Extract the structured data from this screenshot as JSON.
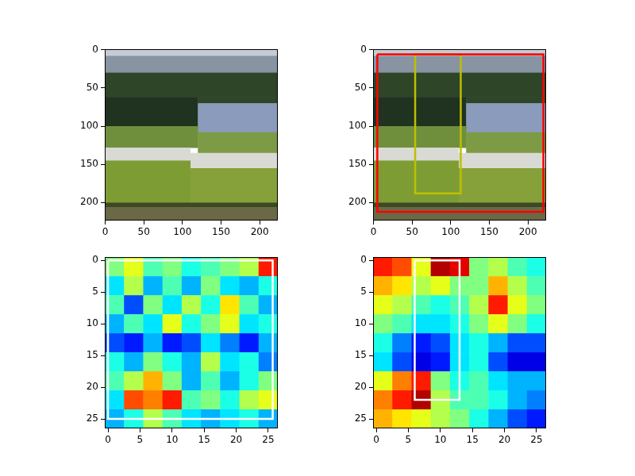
{
  "chart_data": [
    {
      "type": "image",
      "xlim": [
        -0.5,
        223.5
      ],
      "ylim": [
        223.5,
        -0.5
      ],
      "xticks": [
        0,
        50,
        100,
        150,
        200
      ],
      "yticks": [
        0,
        50,
        100,
        150,
        200
      ],
      "grid": false,
      "regions": [
        {
          "x0": -0.5,
          "x1": 223.5,
          "y0": -0.5,
          "y1": 8,
          "color": "#c4ccd6"
        },
        {
          "x0": -0.5,
          "x1": 223.5,
          "y0": 8,
          "y1": 30,
          "color": "#8894a2"
        },
        {
          "x0": -0.5,
          "x1": 223.5,
          "y0": 30,
          "y1": 62,
          "color": "#2e4528"
        },
        {
          "x0": -0.5,
          "x1": 120,
          "y0": 62,
          "y1": 100,
          "color": "#1f3320"
        },
        {
          "x0": 120,
          "x1": 223.5,
          "y0": 62,
          "y1": 70,
          "color": "#2e4528"
        },
        {
          "x0": 120,
          "x1": 223.5,
          "y0": 70,
          "y1": 108,
          "color": "#8a9bbb"
        },
        {
          "x0": -0.5,
          "x1": 120,
          "y0": 100,
          "y1": 128,
          "color": "#6f8f3c"
        },
        {
          "x0": 120,
          "x1": 223.5,
          "y0": 108,
          "y1": 135,
          "color": "#7d9a45"
        },
        {
          "x0": -0.5,
          "x1": 110,
          "y0": 128,
          "y1": 145,
          "color": "#d9dad4"
        },
        {
          "x0": 110,
          "x1": 223.5,
          "y0": 135,
          "y1": 155,
          "color": "#d9dad4"
        },
        {
          "x0": -0.5,
          "x1": 110,
          "y0": 145,
          "y1": 200,
          "color": "#7e9c34"
        },
        {
          "x0": 110,
          "x1": 223.5,
          "y0": 155,
          "y1": 200,
          "color": "#86a03a"
        },
        {
          "x0": -0.5,
          "x1": 223.5,
          "y0": 200,
          "y1": 206,
          "color": "#3b4a22"
        },
        {
          "x0": -0.5,
          "x1": 223.5,
          "y0": 206,
          "y1": 223.5,
          "color": "#6b6845"
        }
      ],
      "boxes": []
    },
    {
      "type": "image",
      "xlim": [
        -0.5,
        223.5
      ],
      "ylim": [
        223.5,
        -0.5
      ],
      "xticks": [
        0,
        50,
        100,
        150,
        200
      ],
      "yticks": [
        0,
        50,
        100,
        150,
        200
      ],
      "grid": false,
      "regions": [
        {
          "x0": -0.5,
          "x1": 223.5,
          "y0": -0.5,
          "y1": 8,
          "color": "#c4ccd6"
        },
        {
          "x0": -0.5,
          "x1": 223.5,
          "y0": 8,
          "y1": 30,
          "color": "#8894a2"
        },
        {
          "x0": -0.5,
          "x1": 223.5,
          "y0": 30,
          "y1": 62,
          "color": "#2e4528"
        },
        {
          "x0": -0.5,
          "x1": 120,
          "y0": 62,
          "y1": 100,
          "color": "#1f3320"
        },
        {
          "x0": 120,
          "x1": 223.5,
          "y0": 62,
          "y1": 70,
          "color": "#2e4528"
        },
        {
          "x0": 120,
          "x1": 223.5,
          "y0": 70,
          "y1": 108,
          "color": "#8a9bbb"
        },
        {
          "x0": -0.5,
          "x1": 120,
          "y0": 100,
          "y1": 128,
          "color": "#6f8f3c"
        },
        {
          "x0": 120,
          "x1": 223.5,
          "y0": 108,
          "y1": 135,
          "color": "#7d9a45"
        },
        {
          "x0": -0.5,
          "x1": 110,
          "y0": 128,
          "y1": 145,
          "color": "#d9dad4"
        },
        {
          "x0": 110,
          "x1": 223.5,
          "y0": 135,
          "y1": 155,
          "color": "#d9dad4"
        },
        {
          "x0": -0.5,
          "x1": 110,
          "y0": 145,
          "y1": 200,
          "color": "#7e9c34"
        },
        {
          "x0": 110,
          "x1": 223.5,
          "y0": 155,
          "y1": 200,
          "color": "#86a03a"
        },
        {
          "x0": -0.5,
          "x1": 223.5,
          "y0": 200,
          "y1": 206,
          "color": "#3b4a22"
        },
        {
          "x0": -0.5,
          "x1": 223.5,
          "y0": 206,
          "y1": 223.5,
          "color": "#6b6845"
        }
      ],
      "boxes": [
        {
          "x0": 5,
          "x1": 220,
          "y0": 6,
          "y1": 212,
          "color": "#ff0000"
        },
        {
          "x0": 54,
          "x1": 113,
          "y0": 6,
          "y1": 188,
          "color": "#bfbf00"
        }
      ]
    },
    {
      "type": "heatmap",
      "xlim": [
        -0.5,
        26.5
      ],
      "ylim": [
        26.5,
        -0.5
      ],
      "xticks": [
        0,
        5,
        10,
        15,
        20,
        25
      ],
      "yticks": [
        0,
        5,
        10,
        15,
        20,
        25
      ],
      "grid": false,
      "color_range": [
        0,
        1
      ],
      "cells": [
        [
          0.5,
          0.6,
          0.45,
          0.5,
          0.4,
          0.45,
          0.5,
          0.55,
          0.85
        ],
        [
          0.35,
          0.55,
          0.3,
          0.45,
          0.3,
          0.5,
          0.35,
          0.3,
          0.4
        ],
        [
          0.45,
          0.2,
          0.5,
          0.35,
          0.55,
          0.4,
          0.65,
          0.45,
          0.3
        ],
        [
          0.3,
          0.45,
          0.35,
          0.6,
          0.4,
          0.5,
          0.6,
          0.35,
          0.4
        ],
        [
          0.2,
          0.15,
          0.3,
          0.15,
          0.2,
          0.35,
          0.25,
          0.15,
          0.3
        ],
        [
          0.4,
          0.3,
          0.5,
          0.4,
          0.3,
          0.55,
          0.35,
          0.4,
          0.25
        ],
        [
          0.45,
          0.55,
          0.7,
          0.5,
          0.3,
          0.45,
          0.3,
          0.4,
          0.5
        ],
        [
          0.35,
          0.8,
          0.75,
          0.85,
          0.45,
          0.5,
          0.4,
          0.55,
          0.6
        ],
        [
          0.3,
          0.4,
          0.55,
          0.45,
          0.35,
          0.3,
          0.35,
          0.4,
          0.3
        ]
      ],
      "boxes": [
        {
          "x0": 0,
          "x1": 25.7,
          "y0": 0,
          "y1": 25,
          "color": "#ffffff"
        }
      ]
    },
    {
      "type": "heatmap",
      "xlim": [
        -0.5,
        26.5
      ],
      "ylim": [
        26.5,
        -0.5
      ],
      "xticks": [
        0,
        5,
        10,
        15,
        20,
        25
      ],
      "yticks": [
        0,
        5,
        10,
        15,
        20,
        25
      ],
      "grid": false,
      "color_range": [
        0,
        1
      ],
      "cells": [
        [
          0.85,
          0.8,
          0.6,
          0.95,
          0.9,
          0.5,
          0.55,
          0.45,
          0.4
        ],
        [
          0.7,
          0.65,
          0.55,
          0.6,
          0.5,
          0.5,
          0.7,
          0.55,
          0.45
        ],
        [
          0.6,
          0.55,
          0.45,
          0.4,
          0.45,
          0.55,
          0.85,
          0.6,
          0.5
        ],
        [
          0.5,
          0.45,
          0.35,
          0.35,
          0.4,
          0.5,
          0.6,
          0.5,
          0.4
        ],
        [
          0.4,
          0.25,
          0.15,
          0.2,
          0.35,
          0.4,
          0.3,
          0.2,
          0.2
        ],
        [
          0.35,
          0.2,
          0.1,
          0.15,
          0.35,
          0.4,
          0.2,
          0.1,
          0.1
        ],
        [
          0.6,
          0.75,
          0.85,
          0.5,
          0.4,
          0.45,
          0.35,
          0.3,
          0.3
        ],
        [
          0.75,
          0.85,
          0.95,
          0.55,
          0.45,
          0.45,
          0.4,
          0.3,
          0.25
        ],
        [
          0.7,
          0.65,
          0.6,
          0.55,
          0.5,
          0.4,
          0.3,
          0.2,
          0.15
        ]
      ],
      "boxes": [
        {
          "x0": 6,
          "x1": 13,
          "y0": 0,
          "y1": 22,
          "color": "#ffffff"
        }
      ]
    }
  ]
}
